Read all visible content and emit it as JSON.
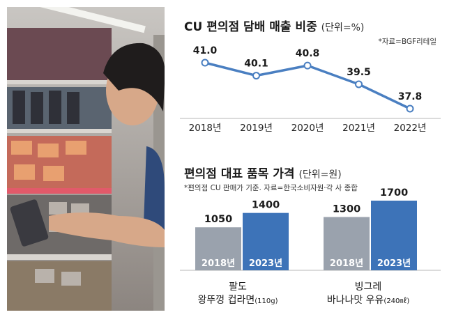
{
  "line_section": {
    "title": "CU 편의점 담배 매출 비중",
    "unit": "(단위=%)",
    "source": "*자료=BGF리테일"
  },
  "bar_section": {
    "title": "편의점 대표 품목 가격",
    "unit": "(단위=원)",
    "note": "*편의점 CU 판매가 기준. 자료=한국소비자원·각 사 종합",
    "products": [
      {
        "line1": "팔도",
        "line2": "왕뚜껑 컵라면",
        "size": "(110g)"
      },
      {
        "line1": "빙그레",
        "line2": "바나나맛 우유",
        "size": "(240㎖)"
      }
    ]
  },
  "colors": {
    "line": "#4a7fc1",
    "bar_old": "#9aa2ad",
    "bar_new": "#3d73b8",
    "grid": "#b7b7b7"
  },
  "chart_data": [
    {
      "type": "line",
      "title": "CU 편의점 담배 매출 비중",
      "ylabel": "(단위=%)",
      "x": [
        "2018년",
        "2019년",
        "2020년",
        "2021년",
        "2022년"
      ],
      "series": [
        {
          "values": [
            41.0,
            40.1,
            40.8,
            39.5,
            37.8
          ]
        }
      ],
      "value_labels": [
        "41.0",
        "40.1",
        "40.8",
        "39.5",
        "37.8"
      ],
      "grid": true
    },
    {
      "type": "bar",
      "title": "편의점 대표 품목 가격",
      "ylabel": "(단위=원)",
      "categories": [
        "팔도 왕뚜껑 컵라면(110g)",
        "빙그레 바나나맛 우유(240㎖)"
      ],
      "series": [
        {
          "name": "2018년",
          "values": [
            1050,
            1300
          ]
        },
        {
          "name": "2023년",
          "values": [
            1400,
            1700
          ]
        }
      ]
    }
  ]
}
